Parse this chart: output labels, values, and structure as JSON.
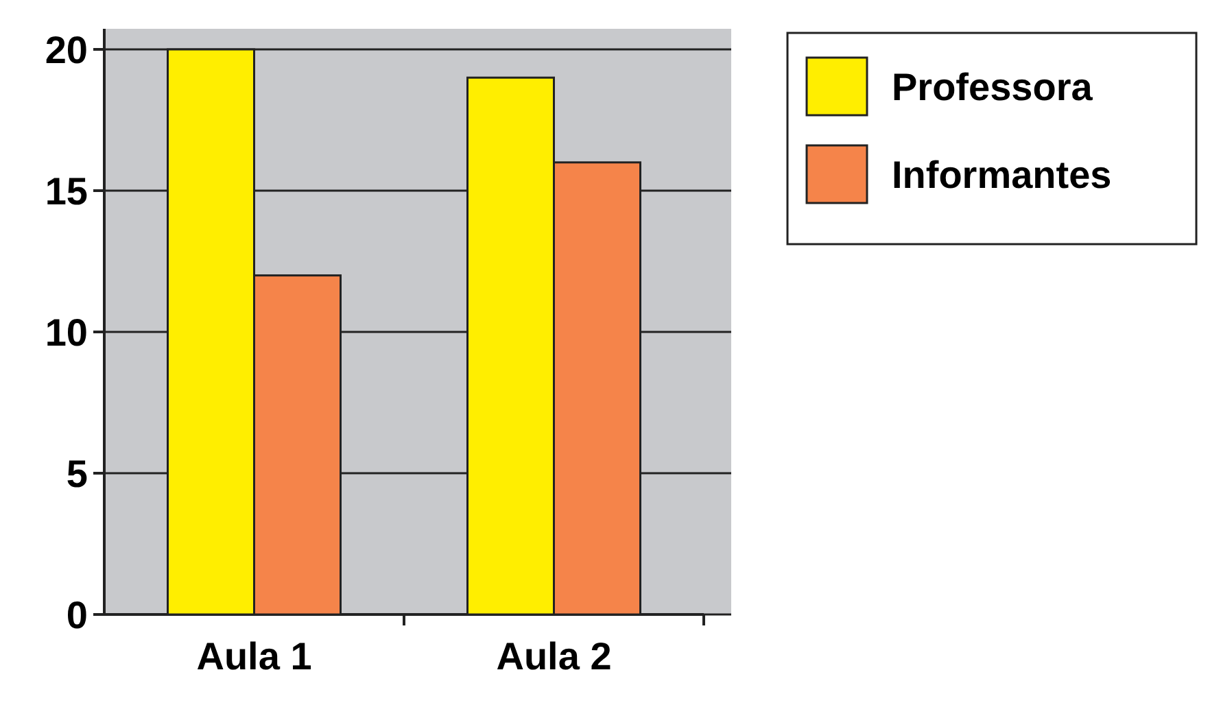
{
  "chart_data": {
    "type": "bar",
    "categories": [
      "Aula 1",
      "Aula 2"
    ],
    "series": [
      {
        "name": "Professora",
        "color": "#ffee00",
        "values": [
          20,
          19
        ]
      },
      {
        "name": "Informantes",
        "color": "#f5844a",
        "values": [
          12,
          16
        ]
      }
    ],
    "ylim": [
      0,
      20
    ],
    "yticks": [
      0,
      5,
      10,
      15,
      20
    ],
    "grid": "y",
    "legend": "top right"
  }
}
